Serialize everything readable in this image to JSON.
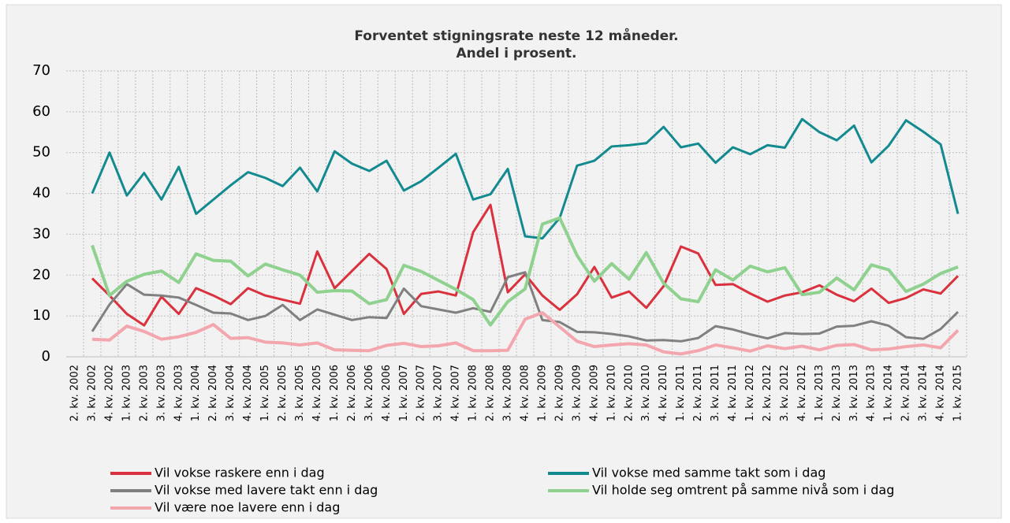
{
  "chart_data": {
    "type": "line",
    "title": [
      "Forventet stigningsrate neste 12 måneder.",
      "Andel i prosent."
    ],
    "categories": [
      "2. kv. 2002",
      "3. kv. 2002",
      "4. kv. 2002",
      "1. kv. 2003",
      "2. kv. 2003",
      "3. kv. 2003",
      "4. kv. 2003",
      "1. kv. 2004",
      "2. kv. 2004",
      "3. kv. 2004",
      "4. kv. 2004",
      "1. kv. 2005",
      "2. kv. 2005",
      "3. kv. 2005",
      "4. kv. 2005",
      "1. kv. 2006",
      "2. kv. 2006",
      "3. kv. 2006",
      "4. kv. 2006",
      "1. kv. 2007",
      "2. kv. 2007",
      "3. kv. 2007",
      "4. kv. 2007",
      "1. kv. 2008",
      "2. kv. 2008",
      "3. kv. 2008",
      "4. kv. 2008",
      "1. kv. 2009",
      "2. kv. 2009",
      "3. kv. 2009",
      "4. kv. 2009",
      "1. kv. 2010",
      "2. kv. 2010",
      "3. kv. 2010",
      "4. kv. 2010",
      "1. kv. 2011",
      "2. kv. 2011",
      "3. kv. 2011",
      "4. kv. 2011",
      "1. kv. 2012",
      "2. kv. 2012",
      "3. kv. 2012",
      "4. kv. 2012",
      "1. kv. 2013",
      "2. kv. 2013",
      "3. kv. 2013",
      "4. kv. 2013",
      "1. kv. 2014",
      "2. kv. 2014",
      "3. kv. 2014",
      "4. kv. 2014",
      "1. kv. 2015"
    ],
    "series": [
      {
        "name": "Vil vokse raskere enn i dag",
        "color": "#d9313d",
        "values": [
          null,
          19.2,
          15,
          10.5,
          7.7,
          14.7,
          10.5,
          16.8,
          15,
          12.9,
          16.8,
          15,
          14,
          13,
          25.8,
          16.8,
          21,
          25.2,
          21.5,
          10.5,
          15.4,
          16,
          15,
          30.5,
          37.2,
          15.8,
          20.2,
          15,
          11.5,
          15.3,
          22,
          14.5,
          16,
          12,
          17.3,
          27,
          25.3,
          17.6,
          17.8,
          15.5,
          13.5,
          15,
          15.8,
          17.5,
          15.2,
          13.6,
          16.7,
          13.2,
          14.4,
          16.5,
          15.5,
          19.8
        ]
      },
      {
        "name": "Vil vokse med samme takt som i dag",
        "color": "#138a8f",
        "values": [
          null,
          40,
          50,
          39.5,
          45,
          38.5,
          46.5,
          35,
          38.5,
          42,
          45.2,
          43.8,
          41.8,
          46.3,
          40.5,
          50.3,
          47.3,
          45.5,
          48,
          40.7,
          43,
          46.3,
          49.7,
          38.5,
          39.8,
          46,
          29.5,
          29,
          34,
          46.8,
          48,
          51.5,
          51.8,
          52.3,
          56.3,
          51.3,
          52.2,
          47.5,
          51.3,
          49.6,
          51.8,
          51.2,
          58.2,
          55,
          53,
          56.6,
          47.6,
          51.7,
          57.9,
          55.1,
          52,
          35
        ]
      },
      {
        "name": "Vil vokse med lavere takt enn i dag",
        "color": "#808080",
        "values": [
          null,
          6.2,
          12.8,
          17.8,
          15.2,
          15,
          14.5,
          12.7,
          10.8,
          10.6,
          9,
          10,
          12.7,
          9,
          11.6,
          10.3,
          9,
          9.7,
          9.5,
          16.7,
          12.4,
          11.6,
          10.8,
          11.9,
          11,
          19.5,
          20.7,
          9,
          8.5,
          6.1,
          6,
          5.6,
          5,
          4,
          4.1,
          3.8,
          4.6,
          7.5,
          6.7,
          5.5,
          4.5,
          5.8,
          5.6,
          5.7,
          7.4,
          7.6,
          8.7,
          7.6,
          4.8,
          4.4,
          6.8,
          11
        ]
      },
      {
        "name": "Vil holde seg omtrent på samme nivå som i dag",
        "color": "#8fd18f",
        "values": [
          null,
          27.3,
          15,
          18.5,
          20.2,
          21,
          18.2,
          25.2,
          23.6,
          23.4,
          19.8,
          22.7,
          21.3,
          20,
          15.8,
          16.2,
          16.1,
          13,
          14,
          22.4,
          20.9,
          18.7,
          16.5,
          14,
          7.8,
          13.5,
          16.6,
          32.5,
          34,
          24.8,
          18.5,
          22.8,
          19,
          25.5,
          18,
          14.2,
          13.5,
          21.3,
          18.8,
          22.2,
          20.8,
          21.8,
          15.2,
          15.8,
          19.3,
          16.4,
          22.5,
          21.3,
          16,
          17.8,
          20.4,
          22
        ]
      },
      {
        "name": "Vil være noe lavere enn i dag",
        "color": "#f4a6ae",
        "values": [
          null,
          4.3,
          4.1,
          7.5,
          6.2,
          4.3,
          4.9,
          6,
          7.9,
          4.5,
          4.7,
          3.6,
          3.4,
          2.9,
          3.4,
          1.7,
          1.6,
          1.5,
          2.8,
          3.3,
          2.5,
          2.7,
          3.4,
          1.5,
          1.5,
          1.6,
          9.2,
          10.8,
          7.3,
          3.8,
          2.5,
          2.9,
          3.2,
          2.9,
          1.2,
          0.7,
          1.5,
          2.9,
          2.2,
          1.4,
          2.7,
          2,
          2.6,
          1.7,
          2.8,
          3,
          1.7,
          1.9,
          2.5,
          2.9,
          2.2,
          6.5
        ]
      }
    ],
    "ylim": [
      0,
      70
    ],
    "yticks": [
      0,
      10,
      20,
      30,
      40,
      50,
      60,
      70
    ],
    "grid": true
  }
}
